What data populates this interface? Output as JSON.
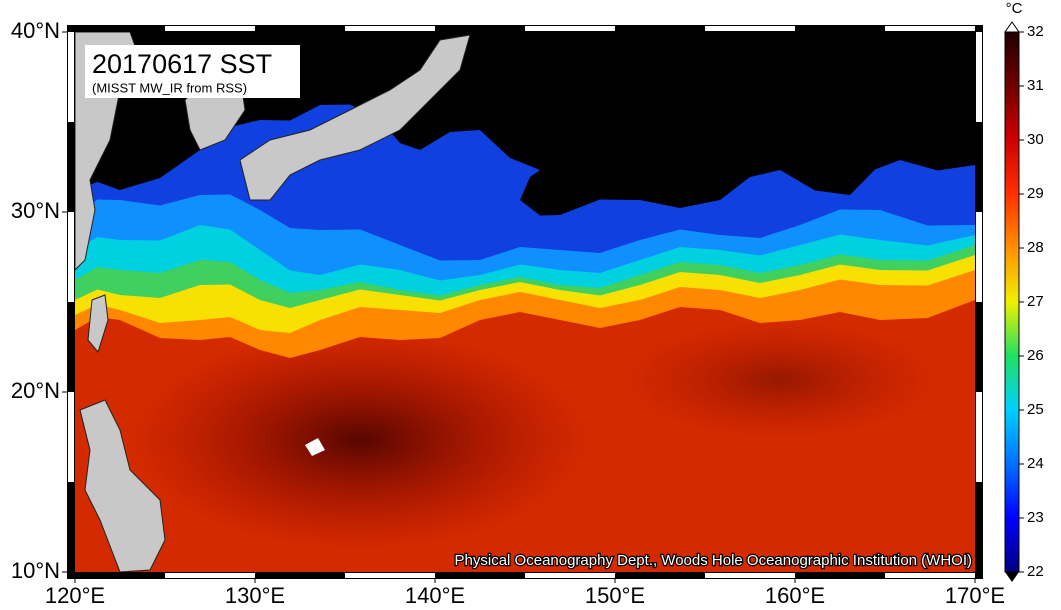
{
  "map": {
    "title": "20170617 SST",
    "subtitle": "(MISST MW_IR from RSS)",
    "credit": "Physical Oceanography Dept., Woods Hole Oceanographic Institution (WHOI)",
    "lonlim": [
      120,
      170
    ],
    "latlim": [
      10,
      40
    ],
    "lon_ticks": [
      {
        "value": 120,
        "label": "120°E"
      },
      {
        "value": 130,
        "label": "130°E"
      },
      {
        "value": 140,
        "label": "140°E"
      },
      {
        "value": 150,
        "label": "150°E"
      },
      {
        "value": 160,
        "label": "160°E"
      },
      {
        "value": 170,
        "label": "170°E"
      }
    ],
    "lat_ticks": [
      {
        "value": 10,
        "label": "10°N"
      },
      {
        "value": 20,
        "label": "20°N"
      },
      {
        "value": 30,
        "label": "30°N"
      },
      {
        "value": 40,
        "label": "40°N"
      }
    ],
    "colorbar": {
      "unit": "°C",
      "lim": [
        22,
        32
      ],
      "ticks": [
        22,
        23,
        24,
        25,
        26,
        27,
        28,
        29,
        30,
        31,
        32
      ]
    }
  }
}
